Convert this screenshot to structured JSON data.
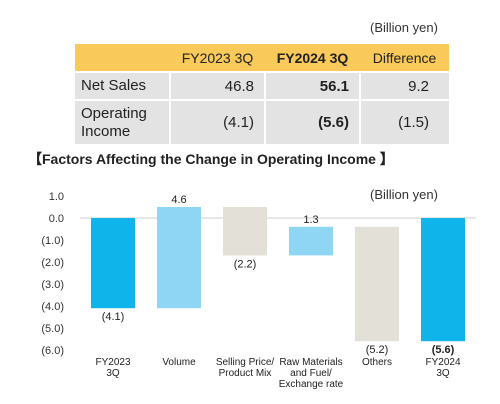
{
  "table": {
    "unit": "(Billion yen)",
    "headers": [
      "",
      "FY2023 3Q",
      "FY2024 3Q",
      "Difference"
    ],
    "rows": [
      {
        "label": "Net Sales",
        "fy2023": "46.8",
        "fy2024": "56.1",
        "diff": "9.2"
      },
      {
        "label": "Operating Income",
        "fy2023": "(4.1)",
        "fy2024": "(5.6)",
        "diff": "(1.5)"
      }
    ]
  },
  "chart_title": "【Factors Affecting the Change in Operating Income 】",
  "chart_data": {
    "type": "bar",
    "subtype": "waterfall",
    "unit": "(Billion yen)",
    "ylim": [
      -6.0,
      1.0
    ],
    "yticks": [
      "1.0",
      "0.0",
      "(1.0)",
      "(2.0)",
      "(3.0)",
      "(4.0)",
      "(5.0)",
      "(6.0)"
    ],
    "ytick_values": [
      1,
      0,
      -1,
      -2,
      -3,
      -4,
      -5,
      -6
    ],
    "grid": false,
    "colors": {
      "total": "#0fb4ea",
      "increase": "#8fd6f5",
      "decrease": "#e3e0d8"
    },
    "categories": [
      "FY2023\n3Q",
      "Volume",
      "Selling Price/\nProduct Mix",
      "Raw Materials\nand Fuel/\nExchange rate",
      "Others",
      "FY2024\n3Q"
    ],
    "bars": [
      {
        "kind": "total",
        "start": 0,
        "end": -4.1,
        "label": "(4.1)",
        "bold": false
      },
      {
        "kind": "increase",
        "start": -4.1,
        "end": 0.5,
        "label": "4.6",
        "bold": false
      },
      {
        "kind": "decrease",
        "start": 0.5,
        "end": -1.7,
        "label": "(2.2)",
        "bold": false
      },
      {
        "kind": "increase",
        "start": -1.7,
        "end": -0.4,
        "label": "1.3",
        "bold": false
      },
      {
        "kind": "decrease",
        "start": -0.4,
        "end": -5.6,
        "label": "(5.2)",
        "bold": false
      },
      {
        "kind": "total",
        "start": 0,
        "end": -5.6,
        "label": "(5.6)",
        "bold": true
      }
    ]
  }
}
